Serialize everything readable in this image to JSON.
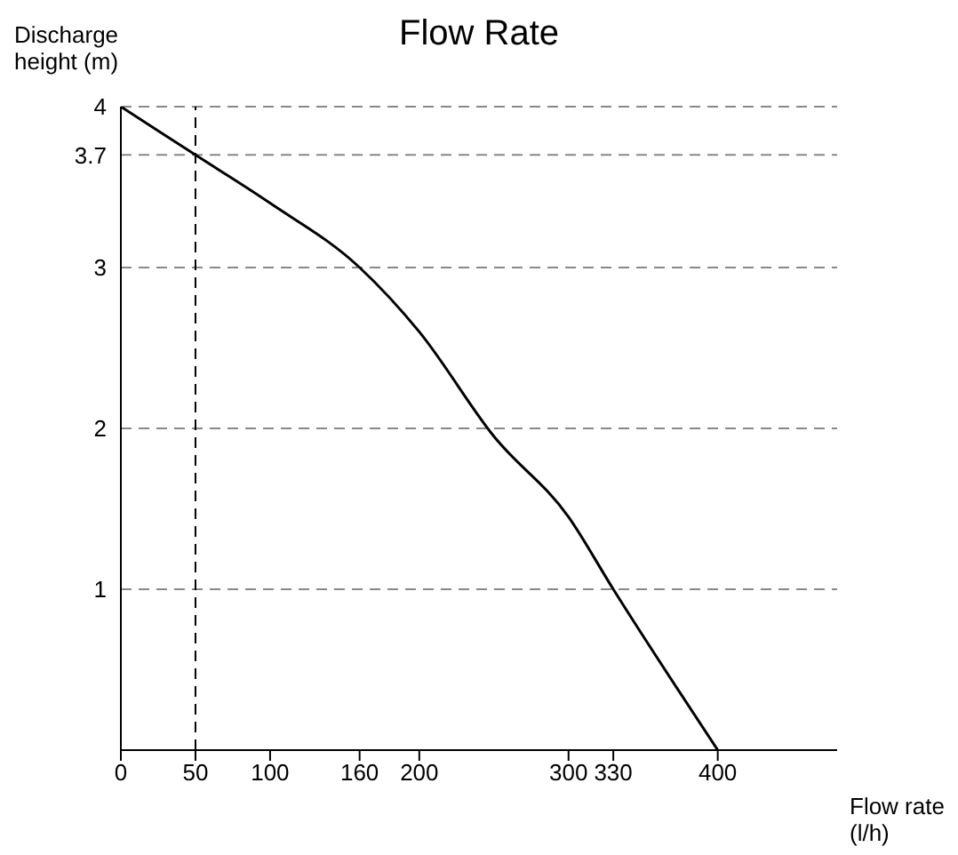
{
  "chart_data": {
    "type": "line",
    "title": "Flow Rate",
    "xlabel": "Flow rate (l/h)",
    "ylabel": "Discharge height (m)",
    "x": [
      0,
      50,
      100,
      160,
      200,
      250,
      300,
      330,
      400
    ],
    "series": [
      {
        "color": "#000000",
        "values": [
          4,
          3.7,
          3.4,
          3.0,
          2.6,
          1.95,
          1.45,
          1.0,
          0
        ]
      }
    ],
    "xlim": [
      0,
      480
    ],
    "xticks": [
      0,
      50,
      100,
      160,
      200,
      300,
      330,
      400
    ],
    "ylim": [
      0,
      4
    ],
    "yticks": [
      1,
      2,
      3,
      3.7,
      4
    ],
    "grid": "y",
    "marker": "none",
    "line_style": "solid",
    "ref_lines": [
      {
        "axis": "x",
        "value": 50,
        "line_style": "dashed",
        "color": "#000000"
      }
    ]
  }
}
